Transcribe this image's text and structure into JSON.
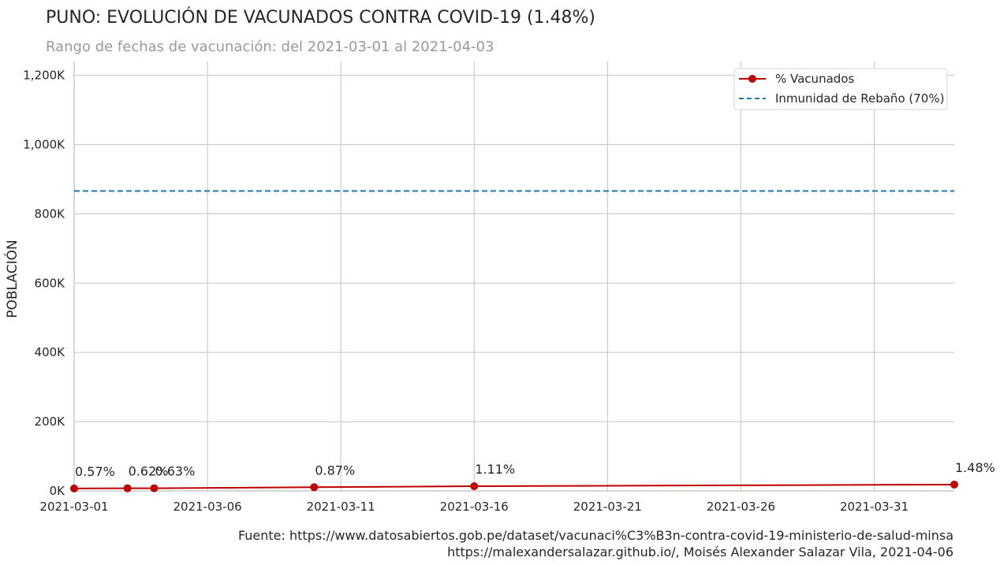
{
  "chart_data": {
    "type": "line",
    "title": "PUNO: EVOLUCIÓN DE VACUNADOS CONTRA COVID-19 (1.48%)",
    "subtitle": "Rango de fechas de vacunación: del 2021-03-01 al 2021-04-03",
    "xlabel": "",
    "ylabel": "POBLACIÓN",
    "xlim": [
      "2021-03-01",
      "2021-04-03"
    ],
    "ylim": [
      0,
      1240000
    ],
    "x_ticks": [
      "2021-03-01",
      "2021-03-06",
      "2021-03-11",
      "2021-03-16",
      "2021-03-21",
      "2021-03-26",
      "2021-03-31"
    ],
    "y_ticks": [
      {
        "value": 0,
        "label": "0K"
      },
      {
        "value": 200000,
        "label": "200K"
      },
      {
        "value": 400000,
        "label": "400K"
      },
      {
        "value": 600000,
        "label": "600K"
      },
      {
        "value": 800000,
        "label": "800K"
      },
      {
        "value": 1000000,
        "label": "1,000K"
      },
      {
        "value": 1200000,
        "label": "1,200K"
      }
    ],
    "grid": true,
    "legend_position": "top-right",
    "series": [
      {
        "name": "% Vacunados",
        "color": "#c00000",
        "style": "solid-marker",
        "points": [
          {
            "x": "2021-03-01",
            "y": 7000,
            "label": "0.57%"
          },
          {
            "x": "2021-03-03",
            "y": 7600,
            "label": "0.62%"
          },
          {
            "x": "2021-03-04",
            "y": 7800,
            "label": "0.63%"
          },
          {
            "x": "2021-03-10",
            "y": 10700,
            "label": "0.87%"
          },
          {
            "x": "2021-03-16",
            "y": 13700,
            "label": "1.11%"
          },
          {
            "x": "2021-04-03",
            "y": 18300,
            "label": "1.48%"
          }
        ]
      },
      {
        "name": "Inmunidad de Rebaño (70%)",
        "color": "#1f77b4",
        "style": "dashed",
        "y": 866000
      }
    ],
    "source_lines": [
      "Fuente: https://www.datosabiertos.gob.pe/dataset/vacunaci%C3%B3n-contra-covid-19-ministerio-de-salud-minsa",
      "https://malexandersalazar.github.io/, Moisés Alexander Salazar Vila, 2021-04-06"
    ]
  }
}
